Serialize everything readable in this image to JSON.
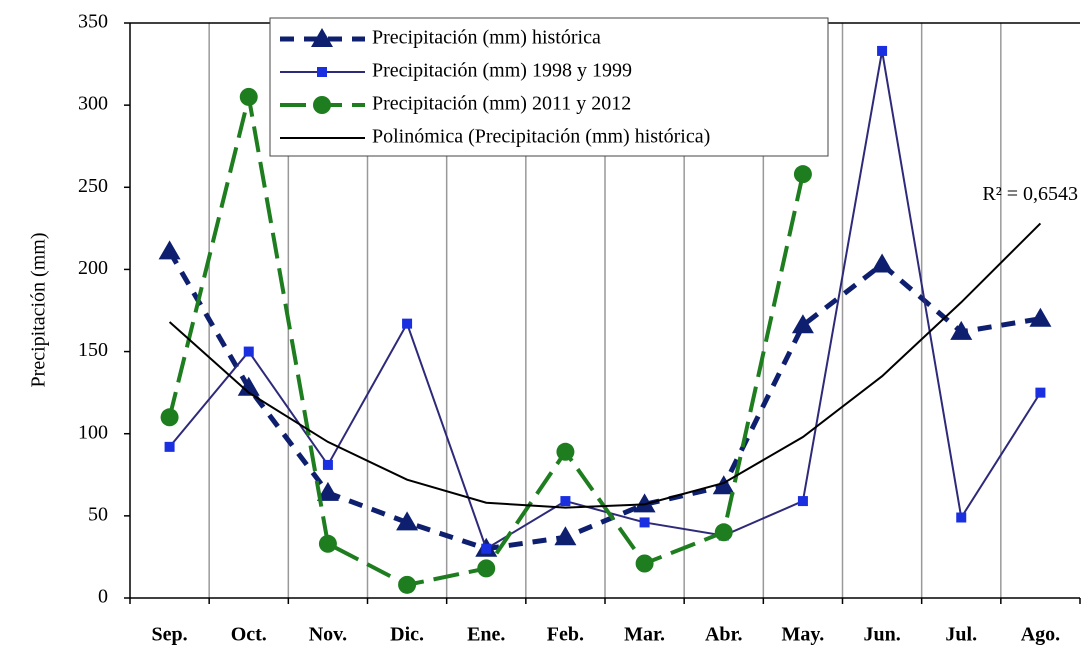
{
  "chart_data": {
    "type": "line",
    "y_label": "Precipitación (mm)",
    "categories": [
      "Sep.",
      "Oct.",
      "Nov.",
      "Dic.",
      "Ene.",
      "Feb.",
      "Mar.",
      "Abr.",
      "May.",
      "Jun.",
      "Jul.",
      "Ago."
    ],
    "series": [
      {
        "name": "Precipitación (mm) histórica",
        "color": "#0d1f6e",
        "style": "dashed",
        "marker": "triangle",
        "values": [
          211,
          128,
          64,
          46,
          30,
          37,
          57,
          68,
          166,
          203,
          162,
          170
        ]
      },
      {
        "name": "Precipitación (mm) 1998 y 1999",
        "color": "#2e2a7a",
        "marker_color": "#1a2fe0",
        "style": "solid",
        "marker": "square",
        "values": [
          92,
          150,
          81,
          167,
          30,
          59,
          46,
          38,
          59,
          333,
          49,
          125
        ]
      },
      {
        "name": "Precipitación (mm) 2011 y 2012",
        "color": "#1e7d1e",
        "style": "longdash",
        "marker": "circle",
        "values": [
          110,
          305,
          33,
          8,
          18,
          89,
          21,
          40,
          258,
          null,
          null,
          null
        ]
      },
      {
        "name": "Polinómica (Precipitación (mm) histórica)",
        "color": "#000000",
        "style": "thin",
        "marker": "none",
        "values": [
          168,
          125,
          95,
          72,
          58,
          55,
          57,
          70,
          98,
          135,
          180,
          228
        ]
      }
    ],
    "annotation": "R² = 0,6543",
    "ylim": [
      0,
      350
    ],
    "yticks": [
      0,
      50,
      100,
      150,
      200,
      250,
      300,
      350
    ],
    "grid": "vertical",
    "legend": "top"
  }
}
